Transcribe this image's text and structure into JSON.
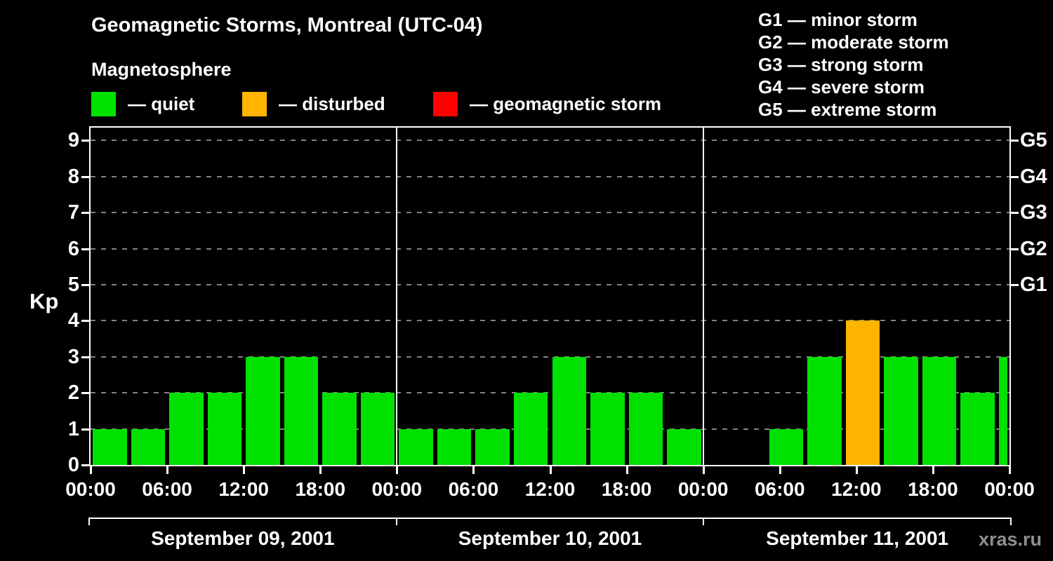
{
  "title": "Geomagnetic Storms, Montreal (UTC-04)",
  "subtitle": "Magnetosphere",
  "watermark": "xras.ru",
  "legend": {
    "quiet": {
      "label": "— quiet",
      "color": "#00e100"
    },
    "disturbed": {
      "label": "— disturbed",
      "color": "#ffb400"
    },
    "storm": {
      "label": "— geomagnetic storm",
      "color": "#ff0000"
    }
  },
  "storm_scale": [
    {
      "code": "G1",
      "label": "minor storm"
    },
    {
      "code": "G2",
      "label": "moderate storm"
    },
    {
      "code": "G3",
      "label": "strong storm"
    },
    {
      "code": "G4",
      "label": "severe storm"
    },
    {
      "code": "G5",
      "label": "extreme storm"
    }
  ],
  "storm_scale_separator": " — ",
  "chart_data": {
    "type": "bar",
    "title": "Geomagnetic Storms, Montreal (UTC-04)",
    "ylabel": "Kp",
    "ylim": [
      0,
      9
    ],
    "yticks": [
      0,
      1,
      2,
      3,
      4,
      5,
      6,
      7,
      8,
      9
    ],
    "grid_levels": [
      1,
      2,
      3,
      4,
      5,
      6,
      7,
      8,
      9
    ],
    "right_labels": [
      {
        "kp": 5,
        "label": "G1"
      },
      {
        "kp": 6,
        "label": "G2"
      },
      {
        "kp": 7,
        "label": "G3"
      },
      {
        "kp": 8,
        "label": "G4"
      },
      {
        "kp": 9,
        "label": "G5"
      }
    ],
    "hours_per_day": 24,
    "hour_ticks": [
      0,
      6,
      12,
      18
    ],
    "hour_tick_labels": [
      "00:00",
      "06:00",
      "12:00",
      "18:00"
    ],
    "end_tick_label": "00:00",
    "kp_colors": {
      "quiet": "#00e100",
      "disturbed": "#ffb400",
      "storm": "#ff0000"
    },
    "color_thresholds": {
      "quiet_max": 3,
      "disturbed_max": 4
    },
    "days": [
      {
        "date": "September 09, 2001",
        "bars": [
          {
            "start": 0,
            "hours": 3,
            "kp": 1
          },
          {
            "start": 3,
            "hours": 3,
            "kp": 1
          },
          {
            "start": 6,
            "hours": 3,
            "kp": 2
          },
          {
            "start": 9,
            "hours": 3,
            "kp": 2
          },
          {
            "start": 12,
            "hours": 3,
            "kp": 3
          },
          {
            "start": 15,
            "hours": 3,
            "kp": 3
          },
          {
            "start": 18,
            "hours": 3,
            "kp": 2
          },
          {
            "start": 21,
            "hours": 3,
            "kp": 2
          }
        ]
      },
      {
        "date": "September 10, 2001",
        "bars": [
          {
            "start": 0,
            "hours": 3,
            "kp": 1
          },
          {
            "start": 3,
            "hours": 3,
            "kp": 1
          },
          {
            "start": 6,
            "hours": 3,
            "kp": 1
          },
          {
            "start": 9,
            "hours": 3,
            "kp": 2
          },
          {
            "start": 12,
            "hours": 3,
            "kp": 3
          },
          {
            "start": 15,
            "hours": 3,
            "kp": 2
          },
          {
            "start": 18,
            "hours": 3,
            "kp": 2
          },
          {
            "start": 21,
            "hours": 3,
            "kp": 1
          }
        ]
      },
      {
        "date": "September 11, 2001",
        "bars": [
          {
            "start": 5,
            "hours": 3,
            "kp": 1
          },
          {
            "start": 8,
            "hours": 3,
            "kp": 3
          },
          {
            "start": 11,
            "hours": 3,
            "kp": 4
          },
          {
            "start": 14,
            "hours": 3,
            "kp": 3
          },
          {
            "start": 17,
            "hours": 3,
            "kp": 3
          },
          {
            "start": 20,
            "hours": 3,
            "kp": 2
          },
          {
            "start": 23,
            "hours": 1,
            "kp": 3
          }
        ]
      }
    ]
  }
}
